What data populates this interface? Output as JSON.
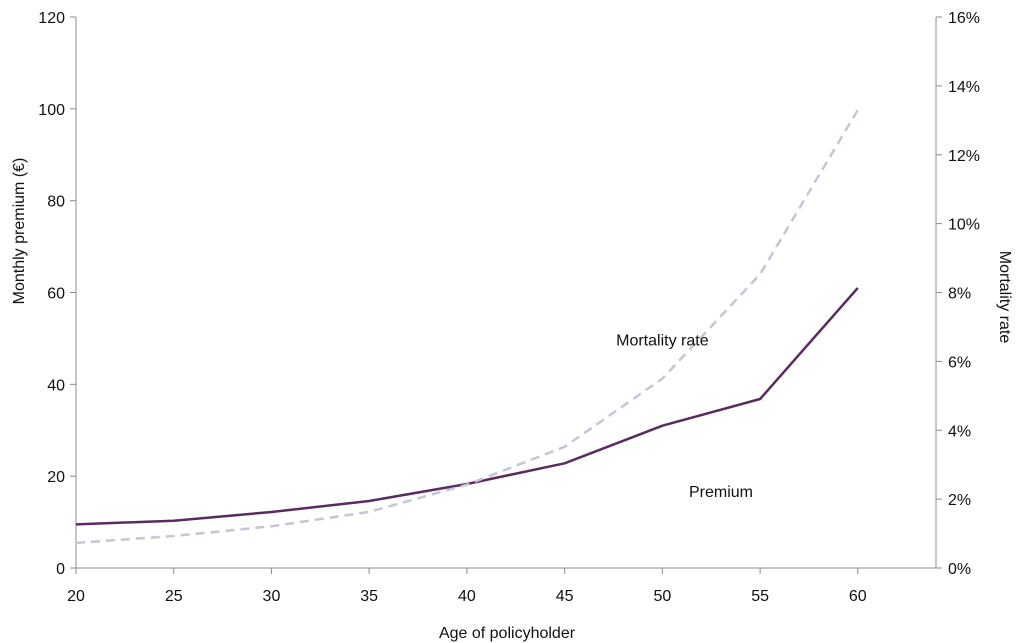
{
  "chart_data": {
    "type": "line",
    "title": "",
    "x": [
      20,
      25,
      30,
      35,
      40,
      45,
      50,
      55,
      60
    ],
    "xlabel": "Age of policyholder",
    "xlim": [
      20,
      64
    ],
    "xticks": [
      "20",
      "25",
      "30",
      "35",
      "40",
      "45",
      "50",
      "55",
      "60"
    ],
    "ylabel_left": "Monthly premium (€)",
    "ylim_left": [
      0,
      120
    ],
    "yticks_left": [
      "0",
      "20",
      "40",
      "60",
      "80",
      "100",
      "120"
    ],
    "ylabel_right": "Mortality rate",
    "ylim_right": [
      0,
      0.16
    ],
    "yticks_right": [
      "0%",
      "2%",
      "4%",
      "6%",
      "8%",
      "10%",
      "12%",
      "14%",
      "16%"
    ],
    "grid": false,
    "legend": "none",
    "series": [
      {
        "name": "Premium",
        "axis": "left",
        "color": "#5b2a62",
        "style": "solid",
        "values": [
          9.5,
          10.3,
          12.2,
          14.6,
          18.3,
          22.8,
          31.0,
          36.8,
          61.0
        ]
      },
      {
        "name": "Mortality rate",
        "axis": "right",
        "color": "#c3c6d6",
        "style": "dashed",
        "values": [
          0.0073,
          0.0093,
          0.0121,
          0.0163,
          0.0242,
          0.0352,
          0.055,
          0.0853,
          0.133
        ]
      }
    ],
    "annotations": [
      {
        "text": "Mortality rate",
        "x": 50,
        "y": 48.5
      },
      {
        "text": "Premium",
        "x": 53,
        "y": 15.5
      }
    ]
  }
}
